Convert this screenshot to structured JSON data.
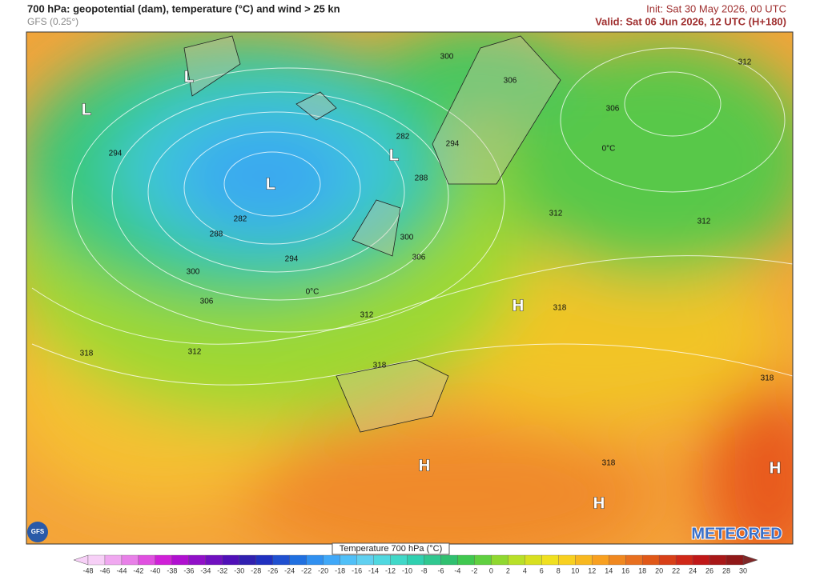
{
  "header": {
    "title": "700 hPa: geopotential (dam), temperature (°C) and wind > 25 kn",
    "model": "GFS (0.25°)",
    "init": "Init: Sat 30 May 2026, 00 UTC",
    "valid": "Valid: Sat 06 Jun 2026, 12 UTC (H+180)"
  },
  "map": {
    "pressure_centers": [
      "L",
      "L",
      "L",
      "L",
      "H",
      "H",
      "H",
      "H"
    ],
    "contour_labels": [
      "300",
      "306",
      "312",
      "306",
      "282",
      "294",
      "294",
      "288",
      "312",
      "312",
      "282",
      "288",
      "300",
      "294",
      "306",
      "300",
      "306",
      "318",
      "312",
      "318",
      "312",
      "318",
      "318",
      "318"
    ],
    "isotherm_labels": [
      "0°C",
      "0°C"
    ]
  },
  "legend": {
    "title": "Temperature 700 hPa (°C)",
    "ticks": [
      -48,
      -46,
      -44,
      -42,
      -40,
      -38,
      -36,
      -34,
      -32,
      -30,
      -28,
      -26,
      -24,
      -22,
      -20,
      -18,
      -16,
      -14,
      -12,
      -10,
      -8,
      -6,
      -4,
      -2,
      0,
      2,
      4,
      6,
      8,
      10,
      12,
      14,
      16,
      18,
      20,
      22,
      24,
      26,
      28,
      30
    ],
    "colors": [
      "#f7d0f7",
      "#f0a8f0",
      "#e880e8",
      "#e050e0",
      "#d020d8",
      "#b010d0",
      "#9010c8",
      "#7010c0",
      "#5010b8",
      "#3020b0",
      "#2030c0",
      "#2050d0",
      "#2070e0",
      "#3090f0",
      "#40a8f8",
      "#50c0f8",
      "#60d0f0",
      "#50d8e0",
      "#40d8c8",
      "#30d0b0",
      "#30c890",
      "#30c070",
      "#40c850",
      "#60d040",
      "#90d830",
      "#b8e028",
      "#d8e020",
      "#f0e020",
      "#f8d020",
      "#f8b820",
      "#f8a020",
      "#f08820",
      "#e87020",
      "#e05818",
      "#d84018",
      "#d02818",
      "#c01818",
      "#a81818",
      "#901818",
      "#802828"
    ]
  },
  "logos": {
    "model": "GFS",
    "brand": "METEORED"
  }
}
